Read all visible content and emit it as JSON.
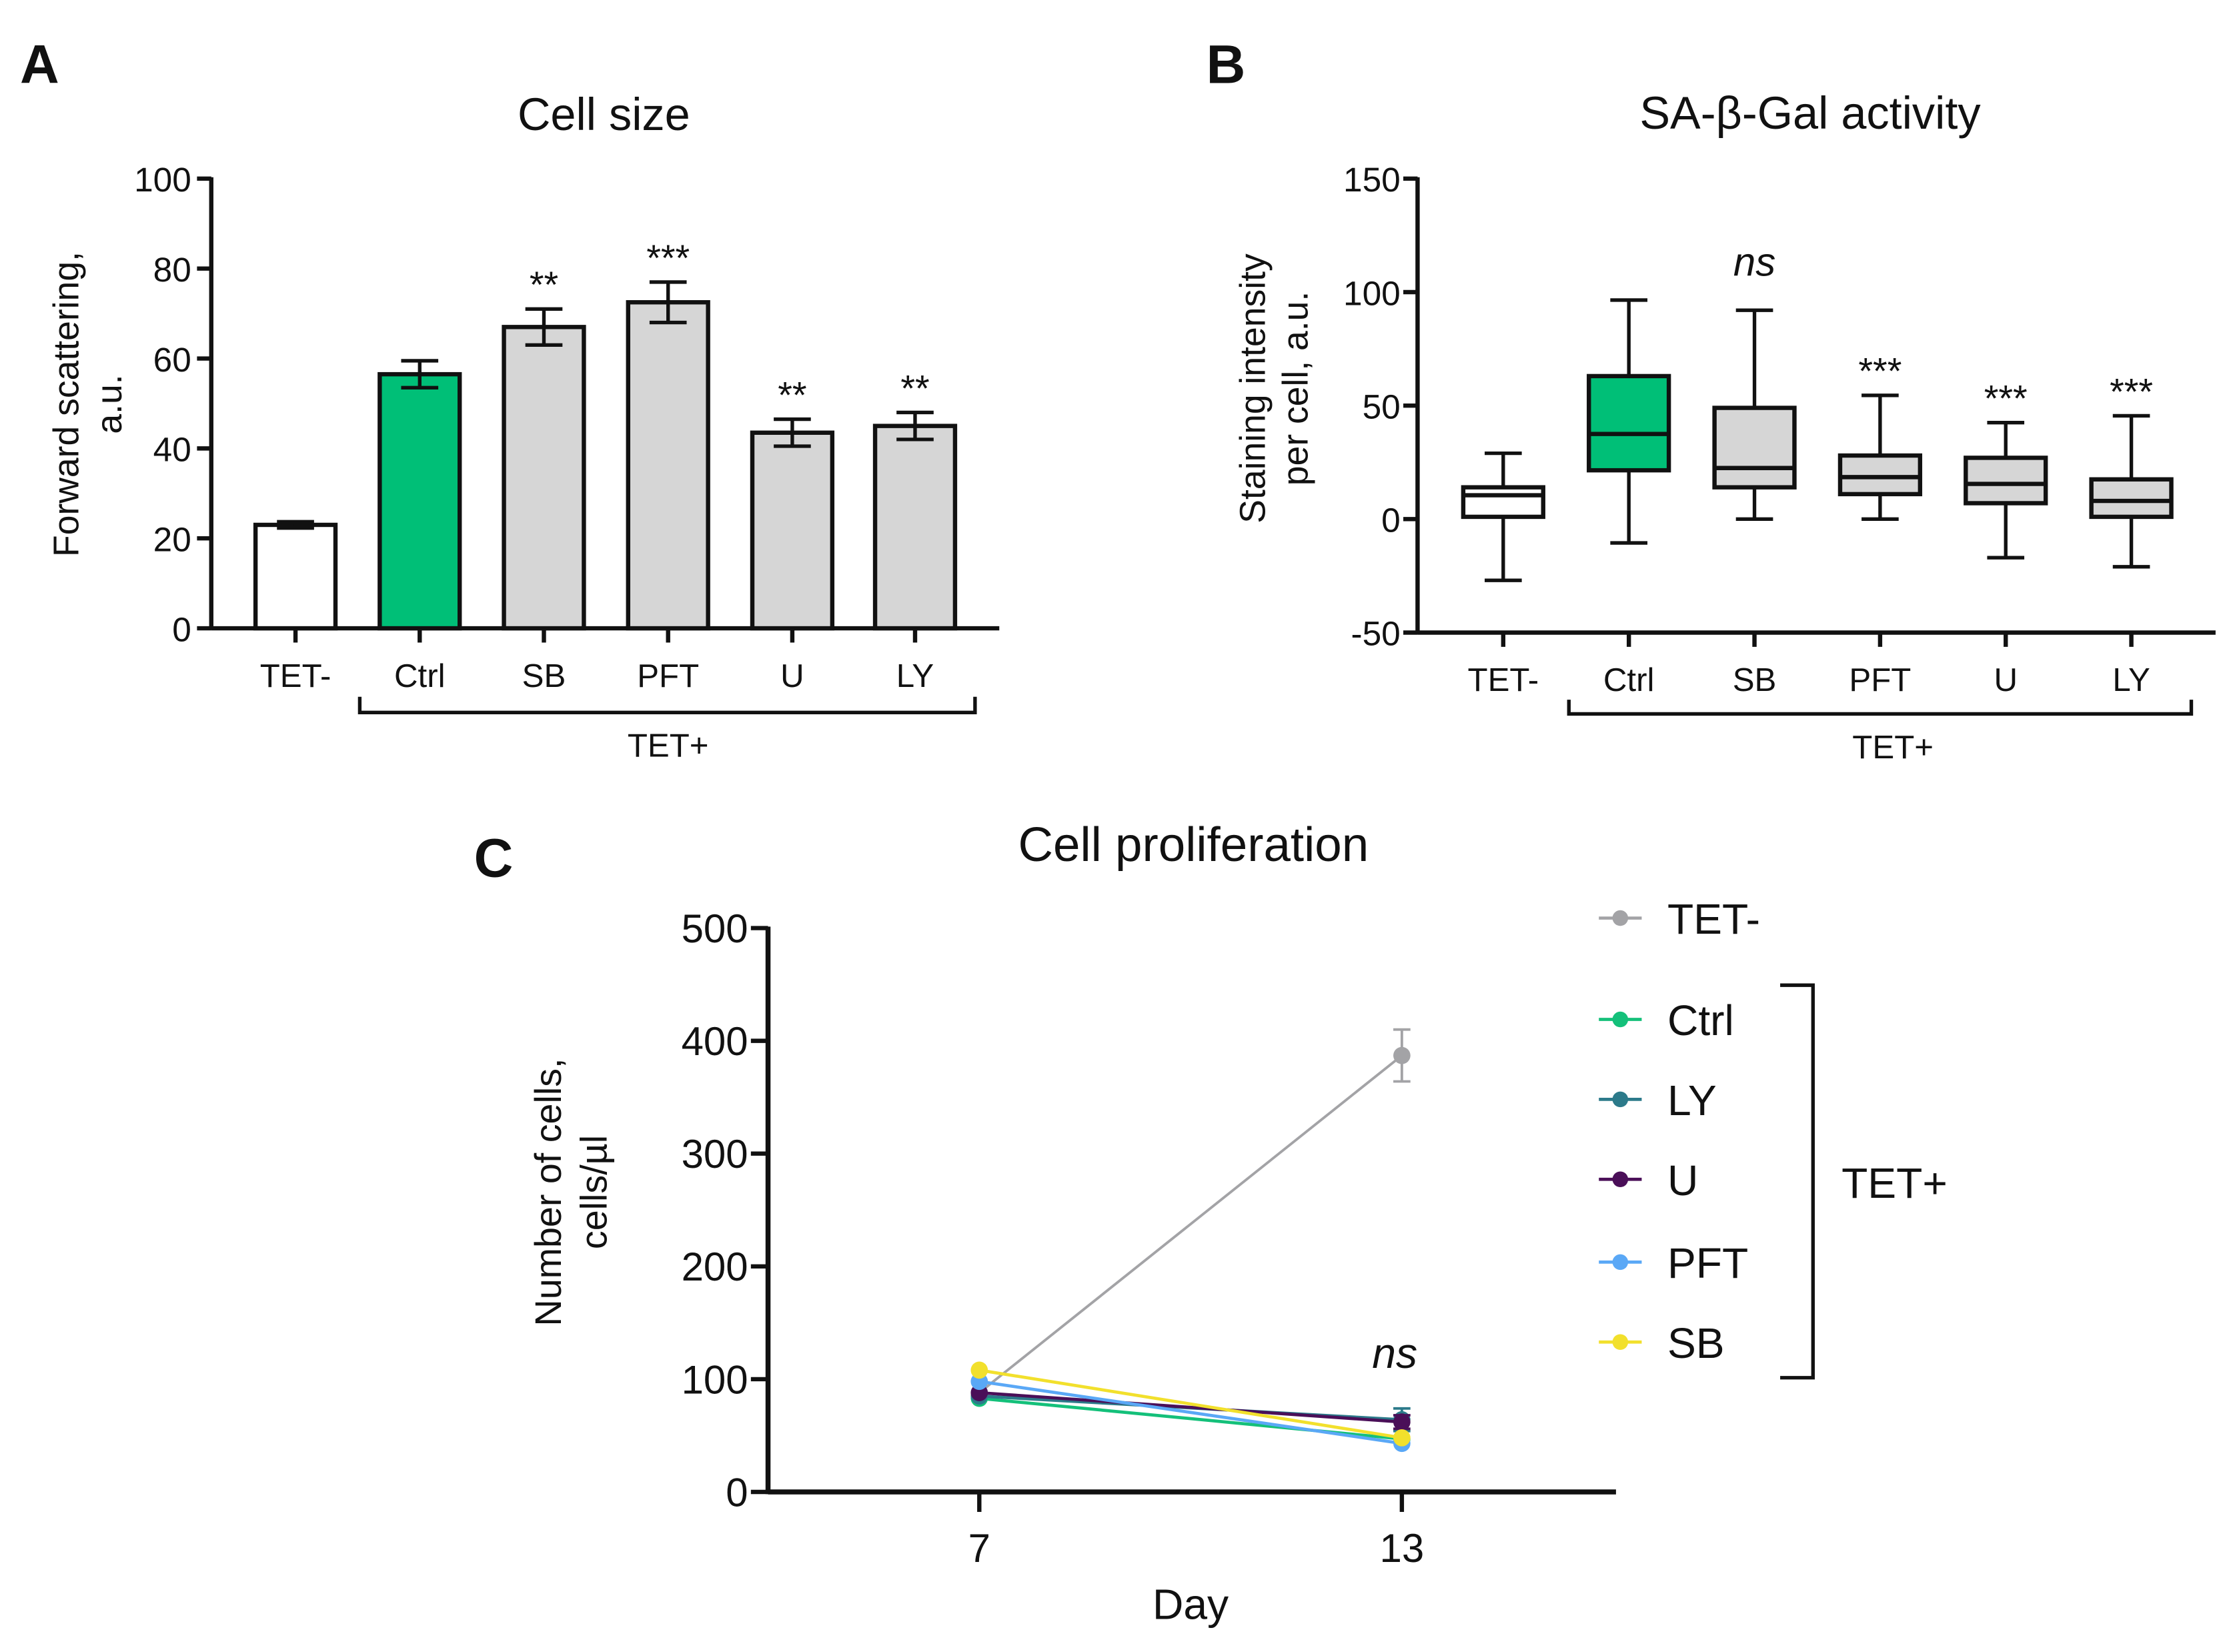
{
  "chart_data": [
    {
      "panel_label": "A",
      "type": "bar",
      "title": "Cell size",
      "ylabel": [
        "Forward scattering,",
        "a.u."
      ],
      "xlabel": "",
      "ylim": [
        0,
        100
      ],
      "yticks": [
        0,
        20,
        40,
        60,
        80,
        100
      ],
      "categories": [
        "TET-",
        "Ctrl",
        "SB",
        "PFT",
        "U",
        "LY"
      ],
      "values": [
        23,
        56.5,
        67,
        72.5,
        43.5,
        45
      ],
      "errors": [
        0.7,
        3,
        4,
        4.5,
        3,
        3
      ],
      "fill_colors": [
        "#ffffff",
        "#00bf77",
        "#d6d6d6",
        "#d6d6d6",
        "#d6d6d6",
        "#d6d6d6"
      ],
      "significance": [
        "",
        "",
        "**",
        "***",
        "**",
        "**"
      ],
      "group_bracket": {
        "label": "TET+",
        "from": "Ctrl",
        "to": "LY"
      },
      "grid": false
    },
    {
      "panel_label": "B",
      "type": "box",
      "title": "SA-β-Gal activity",
      "ylabel": [
        "Staining intensity",
        "per cell, a.u."
      ],
      "xlabel": "",
      "ylim": [
        -50,
        150
      ],
      "yticks": [
        -50,
        0,
        50,
        100,
        150
      ],
      "categories": [
        "TET-",
        "Ctrl",
        "SB",
        "PFT",
        "U",
        "LY"
      ],
      "boxes": [
        {
          "min": -27,
          "q1": 1,
          "median": 10.5,
          "q3": 14,
          "max": 29
        },
        {
          "min": -10.5,
          "q1": 21.5,
          "median": 37.5,
          "q3": 63,
          "max": 96.5
        },
        {
          "min": 0,
          "q1": 14,
          "median": 22.5,
          "q3": 49,
          "max": 92
        },
        {
          "min": 0,
          "q1": 11,
          "median": 18.5,
          "q3": 28,
          "max": 54.5
        },
        {
          "min": -17,
          "q1": 7,
          "median": 15.5,
          "q3": 27,
          "max": 42.5
        },
        {
          "min": -21,
          "q1": 1,
          "median": 8,
          "q3": 17.5,
          "max": 45.5
        }
      ],
      "fill_colors": [
        "#ffffff",
        "#00bf77",
        "#d6d6d6",
        "#d6d6d6",
        "#d6d6d6",
        "#d6d6d6"
      ],
      "significance": [
        "",
        "",
        "ns",
        "***",
        "***",
        "***"
      ],
      "group_bracket": {
        "label": "TET+",
        "from": "Ctrl",
        "to": "LY"
      },
      "grid": false
    },
    {
      "panel_label": "C",
      "type": "line",
      "title": "Cell proliferation",
      "ylabel": [
        "Number of cells,",
        "cells/µl"
      ],
      "xlabel": "Day",
      "x": [
        7,
        13
      ],
      "xticks": [
        7,
        13
      ],
      "ylim": [
        0,
        500
      ],
      "yticks": [
        0,
        100,
        200,
        300,
        400,
        500
      ],
      "series": [
        {
          "name": "TET-",
          "color": "#a3a3a6",
          "values": [
            88,
            387
          ],
          "errors": [
            4,
            23
          ]
        },
        {
          "name": "Ctrl",
          "color": "#14c07a",
          "values": [
            83,
            47
          ],
          "errors": [
            3,
            4
          ]
        },
        {
          "name": "LY",
          "color": "#2c7a8a",
          "values": [
            85,
            64
          ],
          "errors": [
            3,
            10
          ]
        },
        {
          "name": "U",
          "color": "#4a0f58",
          "values": [
            88,
            62
          ],
          "errors": [
            3,
            6
          ]
        },
        {
          "name": "PFT",
          "color": "#5aa8f6",
          "values": [
            98,
            43
          ],
          "errors": [
            3,
            4
          ]
        },
        {
          "name": "SB",
          "color": "#f2e02c",
          "values": [
            108,
            48
          ],
          "errors": [
            3,
            4
          ]
        }
      ],
      "annotation": "ns",
      "legend_position": "right",
      "legend_group_bracket": {
        "label": "TET+",
        "members": [
          "Ctrl",
          "LY",
          "U",
          "PFT",
          "SB"
        ]
      },
      "grid": false
    }
  ]
}
